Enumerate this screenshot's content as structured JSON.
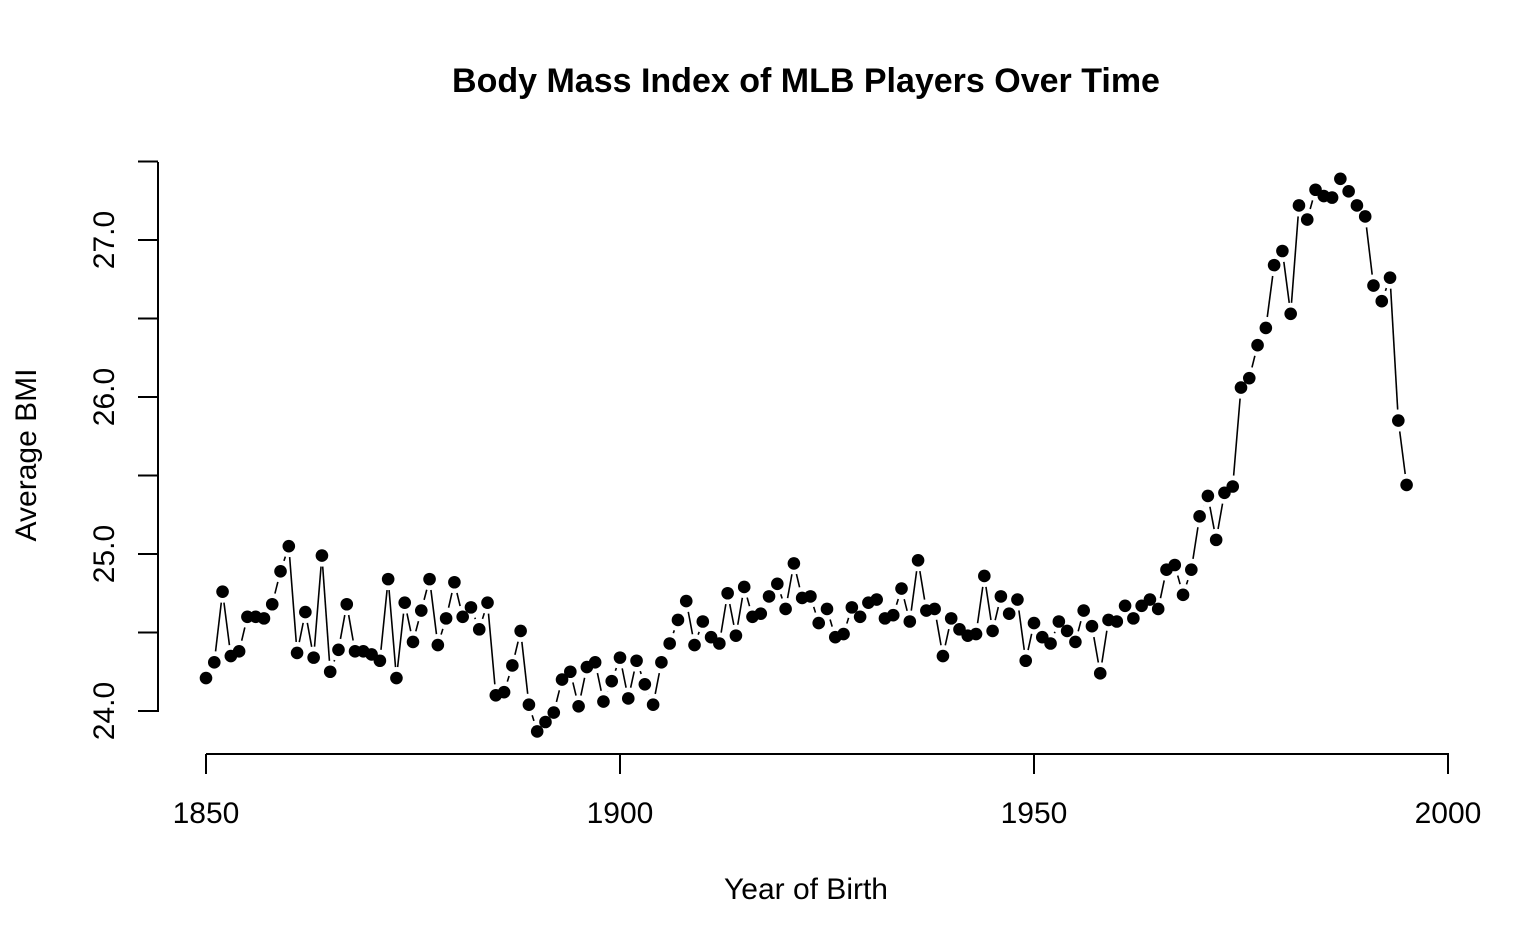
{
  "chart_data": {
    "type": "line",
    "title": "Body Mass Index of MLB Players Over Time",
    "xlabel": "Year of Birth",
    "ylabel": "Average BMI",
    "xlim": [
      1850,
      2000
    ],
    "ylim": [
      24.0,
      27.5
    ],
    "x_ticks": [
      "1850",
      "1900",
      "1950",
      "2000"
    ],
    "y_ticks": [
      "24.0",
      "25.0",
      "26.0",
      "27.0"
    ],
    "grid": false,
    "marker": "filled-circle",
    "line_style": "solid-with-gaps",
    "x": [
      1850,
      1851,
      1852,
      1853,
      1854,
      1855,
      1856,
      1857,
      1858,
      1859,
      1860,
      1861,
      1862,
      1863,
      1864,
      1865,
      1866,
      1867,
      1868,
      1869,
      1870,
      1871,
      1872,
      1873,
      1874,
      1875,
      1876,
      1877,
      1878,
      1879,
      1880,
      1881,
      1882,
      1883,
      1884,
      1885,
      1886,
      1887,
      1888,
      1889,
      1890,
      1891,
      1892,
      1893,
      1894,
      1895,
      1896,
      1897,
      1898,
      1899,
      1900,
      1901,
      1902,
      1903,
      1904,
      1905,
      1906,
      1907,
      1908,
      1909,
      1910,
      1911,
      1912,
      1913,
      1914,
      1915,
      1916,
      1917,
      1918,
      1919,
      1920,
      1921,
      1922,
      1923,
      1924,
      1925,
      1926,
      1927,
      1928,
      1929,
      1930,
      1931,
      1932,
      1933,
      1934,
      1935,
      1936,
      1937,
      1938,
      1939,
      1940,
      1941,
      1942,
      1943,
      1944,
      1945,
      1946,
      1947,
      1948,
      1949,
      1950,
      1951,
      1952,
      1953,
      1954,
      1955,
      1956,
      1957,
      1958,
      1959,
      1960,
      1961,
      1962,
      1963,
      1964,
      1965,
      1966,
      1967,
      1968,
      1969,
      1970,
      1971,
      1972,
      1973,
      1974,
      1975,
      1976,
      1977,
      1978,
      1979,
      1980,
      1981,
      1982,
      1983,
      1984,
      1985,
      1986,
      1987,
      1988,
      1989,
      1990,
      1991,
      1992,
      1993,
      1994,
      1995
    ],
    "y": [
      24.21,
      24.31,
      24.76,
      24.35,
      24.38,
      24.6,
      24.6,
      24.59,
      24.68,
      24.89,
      25.05,
      24.37,
      24.63,
      24.34,
      24.99,
      24.25,
      24.39,
      24.68,
      24.38,
      24.38,
      24.36,
      24.32,
      24.84,
      24.21,
      24.69,
      24.44,
      24.64,
      24.84,
      24.42,
      24.59,
      24.82,
      24.6,
      24.66,
      24.52,
      24.69,
      24.1,
      24.12,
      24.29,
      24.51,
      24.04,
      23.87,
      23.93,
      23.99,
      24.2,
      24.25,
      24.03,
      24.28,
      24.31,
      24.06,
      24.19,
      24.34,
      24.08,
      24.32,
      24.17,
      24.04,
      24.31,
      24.43,
      24.58,
      24.7,
      24.42,
      24.57,
      24.47,
      24.43,
      24.75,
      24.48,
      24.79,
      24.6,
      24.62,
      24.73,
      24.81,
      24.65,
      24.94,
      24.72,
      24.73,
      24.56,
      24.65,
      24.47,
      24.49,
      24.66,
      24.6,
      24.69,
      24.71,
      24.59,
      24.61,
      24.78,
      24.57,
      24.96,
      24.64,
      24.65,
      24.35,
      24.59,
      24.52,
      24.48,
      24.49,
      24.86,
      24.51,
      24.73,
      24.62,
      24.71,
      24.32,
      24.56,
      24.47,
      24.43,
      24.57,
      24.51,
      24.44,
      24.64,
      24.54,
      24.24,
      24.58,
      24.57,
      24.67,
      24.59,
      24.67,
      24.71,
      24.65,
      24.9,
      24.93,
      24.74,
      24.9,
      25.24,
      25.37,
      25.09,
      25.39,
      25.43,
      26.06,
      26.12,
      26.33,
      26.44,
      26.84,
      26.93,
      26.53,
      27.22,
      27.13,
      27.32,
      27.28,
      27.27,
      27.39,
      27.31,
      27.22,
      27.15,
      26.71,
      26.61,
      26.76,
      25.85,
      25.44
    ]
  }
}
